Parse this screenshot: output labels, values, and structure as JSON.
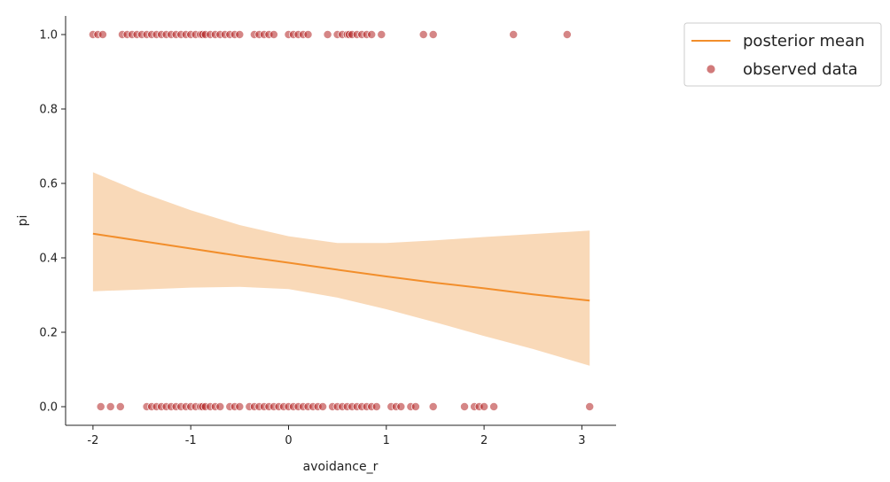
{
  "chart_data": {
    "type": "scatter",
    "title": "",
    "xlabel": "avoidance_r",
    "ylabel": "pi",
    "xlim": [
      -2.28,
      3.35
    ],
    "ylim": [
      -0.05,
      1.05
    ],
    "xticks": [
      -2,
      -1,
      0,
      1,
      2,
      3
    ],
    "xtick_labels": [
      "-2",
      "-1",
      "0",
      "1",
      "2",
      "3"
    ],
    "yticks": [
      0.0,
      0.2,
      0.4,
      0.6,
      0.8,
      1.0
    ],
    "ytick_labels": [
      "0.0",
      "0.2",
      "0.4",
      "0.6",
      "0.8",
      "1.0"
    ],
    "grid": false,
    "legend_position": "upper-right-outside",
    "colors": {
      "mean_line": "#f28e2b",
      "band": "#f7c99a",
      "points": "#b22222"
    },
    "series": [
      {
        "name": "posterior mean",
        "kind": "line",
        "x": [
          -2.0,
          -1.5,
          -1.0,
          -0.5,
          0.0,
          0.5,
          1.0,
          1.5,
          2.0,
          2.5,
          3.08
        ],
        "y": [
          0.465,
          0.445,
          0.425,
          0.405,
          0.387,
          0.368,
          0.35,
          0.333,
          0.318,
          0.302,
          0.285
        ],
        "band_lower": [
          0.31,
          0.315,
          0.32,
          0.322,
          0.316,
          0.293,
          0.262,
          0.227,
          0.19,
          0.155,
          0.11
        ],
        "band_upper": [
          0.63,
          0.575,
          0.528,
          0.488,
          0.458,
          0.44,
          0.44,
          0.447,
          0.456,
          0.464,
          0.473
        ]
      },
      {
        "name": "observed data",
        "kind": "scatter",
        "points_y1": [
          -2.0,
          -1.95,
          -1.9,
          -1.7,
          -1.65,
          -1.6,
          -1.55,
          -1.5,
          -1.45,
          -1.4,
          -1.35,
          -1.3,
          -1.25,
          -1.2,
          -1.15,
          -1.1,
          -1.05,
          -1.0,
          -0.95,
          -0.9,
          -0.88,
          -0.85,
          -0.8,
          -0.75,
          -0.7,
          -0.65,
          -0.6,
          -0.55,
          -0.5,
          -0.35,
          -0.3,
          -0.25,
          -0.2,
          -0.15,
          0.0,
          0.05,
          0.1,
          0.15,
          0.2,
          0.4,
          0.5,
          0.55,
          0.6,
          0.62,
          0.65,
          0.7,
          0.75,
          0.8,
          0.85,
          0.95,
          1.38,
          1.48,
          2.3,
          2.85
        ],
        "points_y0": [
          -1.92,
          -1.82,
          -1.72,
          -1.45,
          -1.4,
          -1.35,
          -1.3,
          -1.25,
          -1.2,
          -1.15,
          -1.1,
          -1.05,
          -1.0,
          -0.95,
          -0.9,
          -0.88,
          -0.85,
          -0.8,
          -0.75,
          -0.7,
          -0.6,
          -0.55,
          -0.5,
          -0.4,
          -0.35,
          -0.3,
          -0.25,
          -0.2,
          -0.15,
          -0.1,
          -0.05,
          0.0,
          0.05,
          0.1,
          0.15,
          0.2,
          0.25,
          0.3,
          0.35,
          0.45,
          0.5,
          0.55,
          0.6,
          0.65,
          0.7,
          0.75,
          0.8,
          0.85,
          0.9,
          1.05,
          1.1,
          1.15,
          1.25,
          1.3,
          1.48,
          1.8,
          1.9,
          1.95,
          2.0,
          2.1,
          3.08
        ]
      }
    ]
  }
}
